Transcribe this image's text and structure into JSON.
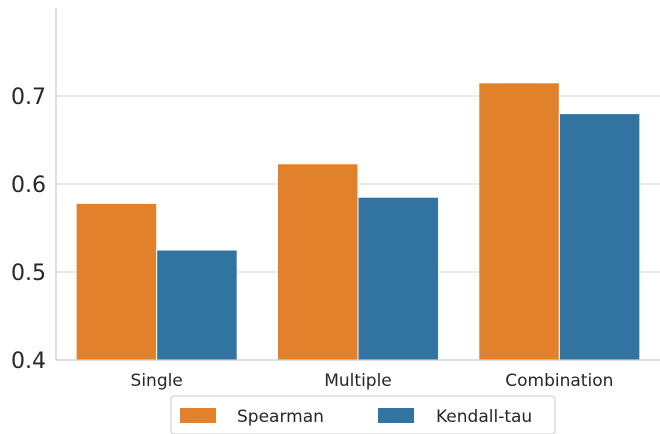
{
  "chart_data": {
    "type": "bar",
    "categories": [
      "Single",
      "Multiple",
      "Combination"
    ],
    "series": [
      {
        "name": "Spearman",
        "color": "#e1812c",
        "values": [
          0.578,
          0.623,
          0.715
        ]
      },
      {
        "name": "Kendall-tau",
        "color": "#3274a1",
        "values": [
          0.525,
          0.585,
          0.68
        ]
      }
    ],
    "ylim": [
      0.4,
      0.8
    ],
    "yticks": [
      "0.4",
      "0.5",
      "0.6",
      "0.7"
    ],
    "title": "",
    "xlabel": "",
    "ylabel": "",
    "grid": "horizontal",
    "legend_position": "bottom-center"
  }
}
